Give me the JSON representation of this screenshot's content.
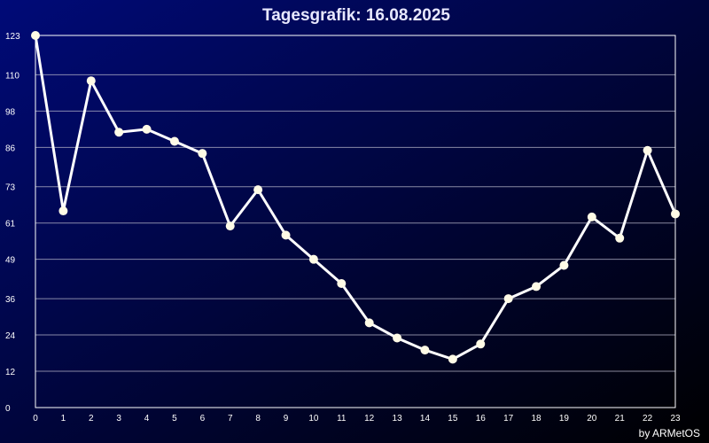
{
  "chart_data": {
    "type": "line",
    "title": "Tagesgrafik: 16.08.2025",
    "credit": "by ARMetOS",
    "xlabel": "",
    "ylabel": "",
    "x": [
      0,
      1,
      2,
      3,
      4,
      5,
      6,
      7,
      8,
      9,
      10,
      11,
      12,
      13,
      14,
      15,
      16,
      17,
      18,
      19,
      20,
      21,
      22,
      23
    ],
    "x_tick_labels": [
      "0",
      "1",
      "2",
      "3",
      "4",
      "5",
      "6",
      "7",
      "8",
      "9",
      "10",
      "11",
      "12",
      "13",
      "14",
      "15",
      "16",
      "17",
      "18",
      "19",
      "20",
      "21",
      "22",
      "23"
    ],
    "y_ticks": [
      0,
      12,
      24,
      36,
      49,
      61,
      73,
      86,
      98,
      110,
      123
    ],
    "ylim": [
      0,
      123
    ],
    "grid": true,
    "series": [
      {
        "values": [
          123,
          65,
          108,
          91,
          92,
          88,
          84,
          60,
          72,
          57,
          49,
          41,
          28,
          23,
          19,
          16,
          21,
          36,
          40,
          47,
          63,
          56,
          85,
          64
        ]
      }
    ],
    "colors": {
      "background_start": "#000a78",
      "background_end": "#000000",
      "line": "#ffffff",
      "marker": "#fffbe6",
      "grid": "#b4b4c8",
      "axis": "#ffffff"
    }
  }
}
